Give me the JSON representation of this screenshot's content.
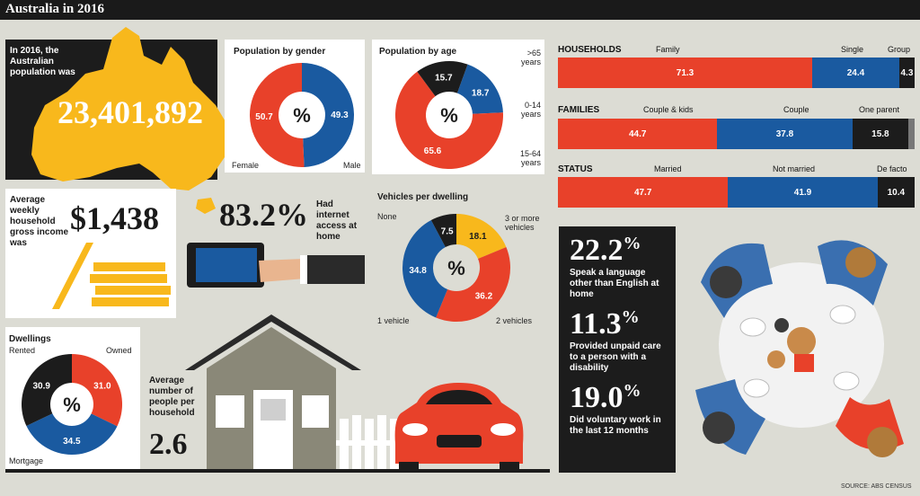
{
  "title": "Australia in 2016",
  "population": {
    "intro": "In 2016, the Australian population was",
    "value": "23,401,892"
  },
  "income": {
    "text": "Average weekly household gross income was",
    "value": "$1,438"
  },
  "internet": {
    "value": "83.2%",
    "text": "Had internet access at home"
  },
  "household_size": {
    "text": "Average number of people per household",
    "value": "2.6"
  },
  "stats": [
    {
      "value": "22.2",
      "unit": "%",
      "text": "Speak a language other than English at home"
    },
    {
      "value": "11.3",
      "unit": "%",
      "text": "Provided unpaid care to a person with a disability"
    },
    {
      "value": "19.0",
      "unit": "%",
      "text": "Did voluntary work in the last 12 months"
    }
  ],
  "source": "SOURCE: ABS CENSUS",
  "colors": {
    "red": "#e8412a",
    "blue": "#1a5aa0",
    "black": "#1c1c1c",
    "yellow": "#f8b81c",
    "gray": "#777777"
  },
  "chart_data": [
    {
      "type": "pie",
      "title": "Population by gender",
      "center_label": "%",
      "slices": [
        {
          "name": "Male",
          "value": 49.3,
          "label": "49.3",
          "color": "#1a5aa0"
        },
        {
          "name": "Female",
          "value": 50.7,
          "label": "50.7",
          "color": "#e8412a"
        }
      ]
    },
    {
      "type": "pie",
      "title": "Population by age",
      "center_label": "%",
      "slices": [
        {
          "name": "0-14 years",
          "value": 18.7,
          "label": "18.7",
          "color": "#1a5aa0"
        },
        {
          "name": "15-64 years",
          "value": 65.6,
          "label": "65.6",
          "color": "#e8412a"
        },
        {
          "name": ">65 years",
          "value": 15.7,
          "label": "15.7",
          "color": "#1c1c1c"
        }
      ]
    },
    {
      "type": "pie",
      "title": "Vehicles per dwelling",
      "center_label": "%",
      "slices": [
        {
          "name": "3 or more vehicles",
          "value": 18.1,
          "label": "18.1",
          "color": "#f8b81c"
        },
        {
          "name": "2 vehicles",
          "value": 36.2,
          "label": "36.2",
          "color": "#e8412a"
        },
        {
          "name": "1 vehicle",
          "value": 34.8,
          "label": "34.8",
          "color": "#1a5aa0"
        },
        {
          "name": "None",
          "value": 7.5,
          "label": "7.5",
          "color": "#1c1c1c"
        }
      ]
    },
    {
      "type": "pie",
      "title": "Dwellings",
      "center_label": "%",
      "slices": [
        {
          "name": "Owned",
          "value": 31.0,
          "label": "31.0",
          "color": "#e8412a"
        },
        {
          "name": "Mortgage",
          "value": 34.5,
          "label": "34.5",
          "color": "#1a5aa0"
        },
        {
          "name": "Rented",
          "value": 30.9,
          "label": "30.9",
          "color": "#1c1c1c"
        }
      ]
    },
    {
      "type": "bar",
      "title": "HOUSEHOLDS",
      "stacked": true,
      "segments": [
        {
          "name": "Family",
          "value": 71.3,
          "label": "71.3",
          "color": "#e8412a"
        },
        {
          "name": "Single",
          "value": 24.4,
          "label": "24.4",
          "color": "#1a5aa0"
        },
        {
          "name": "Group",
          "value": 4.3,
          "label": "4.3",
          "color": "#1c1c1c"
        }
      ]
    },
    {
      "type": "bar",
      "title": "FAMILIES",
      "stacked": true,
      "segments": [
        {
          "name": "Couple & kids",
          "value": 44.7,
          "label": "44.7",
          "color": "#e8412a"
        },
        {
          "name": "Couple",
          "value": 37.8,
          "label": "37.8",
          "color": "#1a5aa0"
        },
        {
          "name": "One parent",
          "value": 15.8,
          "label": "15.8",
          "color": "#1c1c1c"
        },
        {
          "name": "",
          "value": 1.7,
          "label": "",
          "color": "#777777"
        }
      ]
    },
    {
      "type": "bar",
      "title": "STATUS",
      "stacked": true,
      "segments": [
        {
          "name": "Married",
          "value": 47.7,
          "label": "47.7",
          "color": "#e8412a"
        },
        {
          "name": "Not married",
          "value": 41.9,
          "label": "41.9",
          "color": "#1a5aa0"
        },
        {
          "name": "De facto",
          "value": 10.4,
          "label": "10.4",
          "color": "#1c1c1c"
        }
      ]
    }
  ]
}
